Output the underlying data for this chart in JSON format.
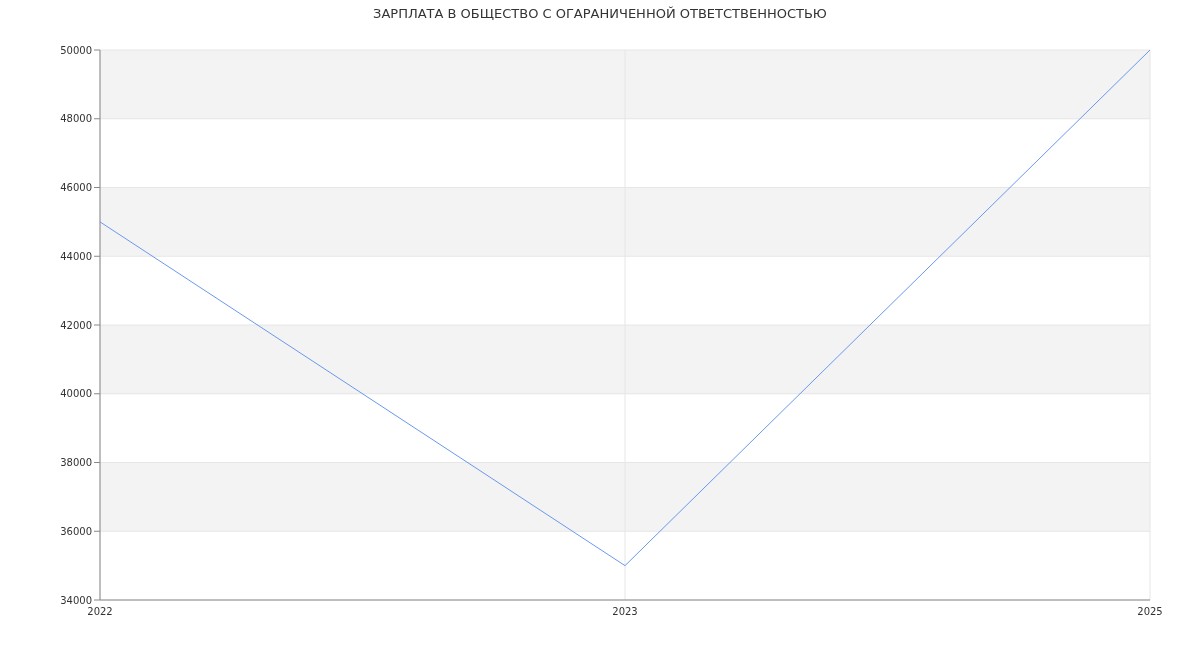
{
  "chart_data": {
    "type": "line",
    "title": "ЗАРПЛАТА В ОБЩЕСТВО С ОГАРАНИЧЕННОЙ ОТВЕТСТВЕННОСТЬЮ",
    "categories": [
      "2022",
      "2023",
      "2025"
    ],
    "series": [
      {
        "color": "#6b98ee",
        "values": [
          45000,
          35000,
          50000
        ]
      }
    ],
    "ylim": [
      34000,
      50000
    ],
    "yticks": [
      34000,
      36000,
      38000,
      40000,
      42000,
      44000,
      46000,
      48000,
      50000
    ],
    "grid": true,
    "marker": "none",
    "line_style": "solid"
  }
}
